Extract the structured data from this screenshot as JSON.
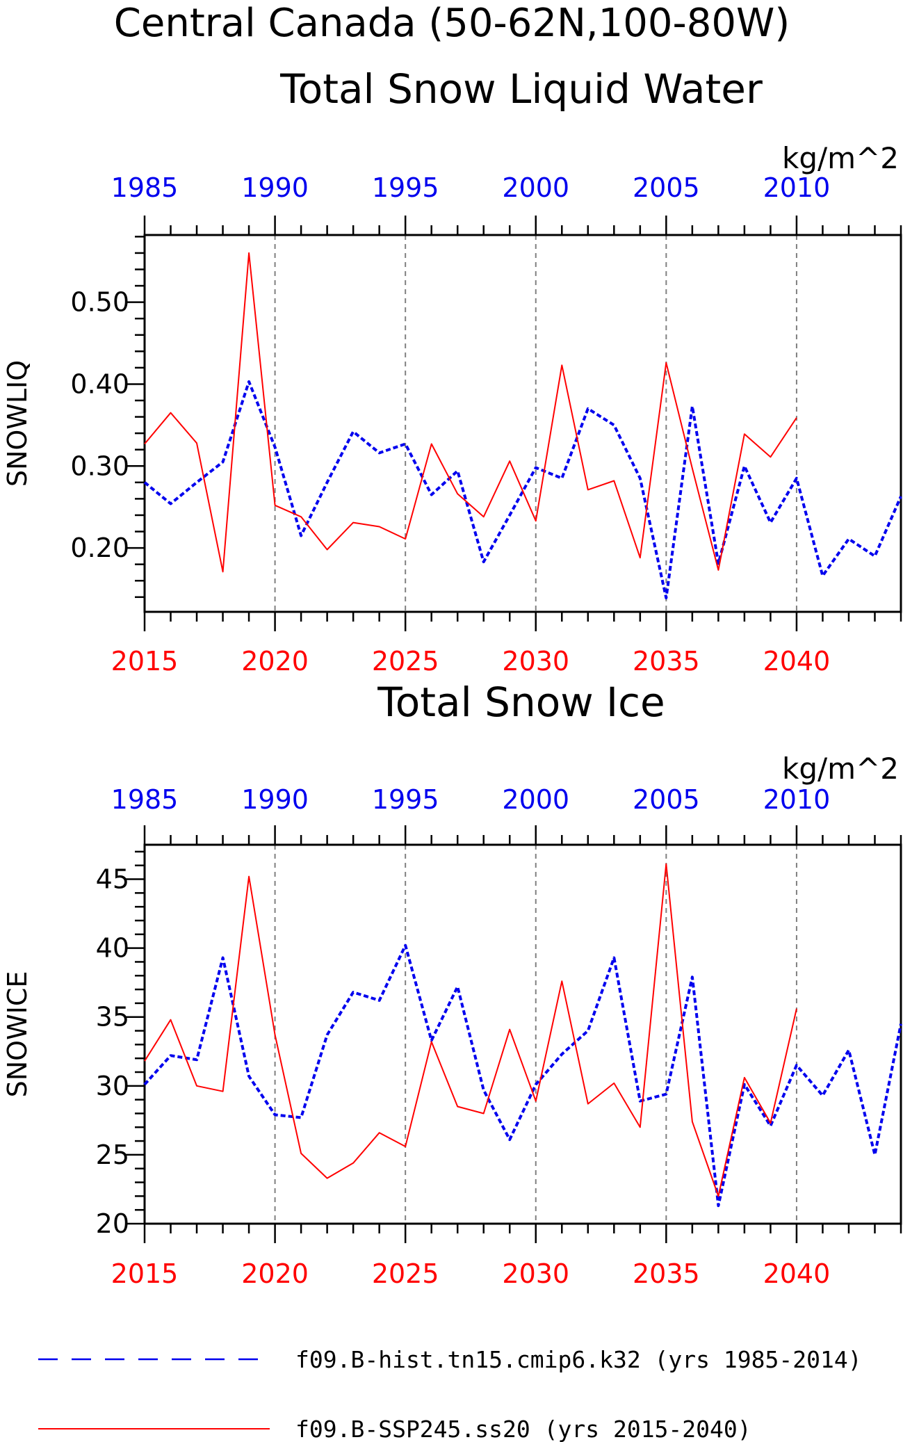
{
  "main_title_line1": "Central Canada (50-62N,100-80W)",
  "colors": {
    "hist": "#0000ee",
    "ssp": "#ff0000",
    "axis": "#000000",
    "grid": "#808080"
  },
  "legend": [
    {
      "label": "f09.B-hist.tn15.cmip6.k32 (yrs 1985-2014)",
      "color": "#0000ee",
      "style": "dashed"
    },
    {
      "label": "f09.B-SSP245.ss20 (yrs 2015-2040)",
      "color": "#ff0000",
      "style": "solid"
    }
  ],
  "chart_data": [
    {
      "type": "line",
      "title": "Total Snow Liquid Water",
      "ylabel": "SNOWLIQ",
      "units": "kg/m^2",
      "ylim": [
        0.122,
        0.582
      ],
      "yticks": [
        "0.20",
        "0.30",
        "0.40",
        "0.50"
      ],
      "ytick_values": [
        0.2,
        0.3,
        0.4,
        0.5
      ],
      "yminor_step": 0.02,
      "xlim_bottom": [
        2015,
        2044
      ],
      "xticks_bottom": [
        2015,
        2020,
        2025,
        2030,
        2035,
        2040
      ],
      "xlim_top": [
        1985,
        2014
      ],
      "xticks_top": [
        1985,
        1990,
        1995,
        2000,
        2005,
        2010
      ],
      "grid": "vertical dashed at major bottom ticks",
      "series": [
        {
          "name": "f09.B-hist.tn15.cmip6.k32 (yrs 1985-2014)",
          "axis": "top",
          "style": "dashed",
          "x": [
            1985,
            1986,
            1987,
            1988,
            1989,
            1990,
            1991,
            1992,
            1993,
            1994,
            1995,
            1996,
            1997,
            1998,
            1999,
            2000,
            2001,
            2002,
            2003,
            2004,
            2005,
            2006,
            2007,
            2008,
            2009,
            2010,
            2011,
            2012,
            2013,
            2014
          ],
          "values": [
            0.28,
            0.254,
            0.28,
            0.305,
            0.403,
            0.323,
            0.215,
            0.28,
            0.342,
            0.316,
            0.327,
            0.265,
            0.294,
            0.183,
            0.24,
            0.298,
            0.285,
            0.37,
            0.35,
            0.285,
            0.139,
            0.373,
            0.181,
            0.3,
            0.231,
            0.285,
            0.166,
            0.211,
            0.19,
            0.263
          ]
        },
        {
          "name": "f09.B-SSP245.ss20 (yrs 2015-2040)",
          "axis": "bottom",
          "style": "solid",
          "x": [
            2015,
            2016,
            2017,
            2018,
            2019,
            2020,
            2021,
            2022,
            2023,
            2024,
            2025,
            2026,
            2027,
            2028,
            2029,
            2030,
            2031,
            2032,
            2033,
            2034,
            2035,
            2036,
            2037,
            2038,
            2039,
            2040
          ],
          "values": [
            0.327,
            0.365,
            0.328,
            0.171,
            0.56,
            0.252,
            0.238,
            0.198,
            0.231,
            0.226,
            0.211,
            0.327,
            0.266,
            0.238,
            0.306,
            0.233,
            0.423,
            0.271,
            0.282,
            0.188,
            0.426,
            0.297,
            0.173,
            0.339,
            0.311,
            0.359
          ]
        }
      ]
    },
    {
      "type": "line",
      "title": "Total Snow Ice",
      "ylabel": "SNOWICE",
      "units": "kg/m^2",
      "ylim": [
        20,
        47.5
      ],
      "yticks": [
        "20",
        "25",
        "30",
        "35",
        "40",
        "45"
      ],
      "ytick_values": [
        20,
        25,
        30,
        35,
        40,
        45
      ],
      "yminor_step": 1,
      "xlim_bottom": [
        2015,
        2044
      ],
      "xticks_bottom": [
        2015,
        2020,
        2025,
        2030,
        2035,
        2040
      ],
      "xlim_top": [
        1985,
        2014
      ],
      "xticks_top": [
        1985,
        1990,
        1995,
        2000,
        2005,
        2010
      ],
      "grid": "vertical dashed at major bottom ticks",
      "series": [
        {
          "name": "f09.B-hist.tn15.cmip6.k32 (yrs 1985-2014)",
          "axis": "top",
          "style": "dashed",
          "x": [
            1985,
            1986,
            1987,
            1988,
            1989,
            1990,
            1991,
            1992,
            1993,
            1994,
            1995,
            1996,
            1997,
            1998,
            1999,
            2000,
            2001,
            2002,
            2003,
            2004,
            2005,
            2006,
            2007,
            2008,
            2009,
            2010,
            2011,
            2012,
            2013,
            2014
          ],
          "values": [
            30.1,
            32.2,
            31.9,
            39.3,
            30.7,
            27.9,
            27.7,
            33.7,
            36.8,
            36.2,
            40.2,
            33.3,
            37.2,
            29.7,
            26.1,
            30.1,
            32.3,
            34.0,
            39.3,
            28.9,
            29.4,
            37.9,
            21.3,
            30.1,
            27.1,
            31.5,
            29.3,
            32.6,
            25.0,
            34.5
          ]
        },
        {
          "name": "f09.B-SSP245.ss20 (yrs 2015-2040)",
          "axis": "bottom",
          "style": "solid",
          "x": [
            2015,
            2016,
            2017,
            2018,
            2019,
            2020,
            2021,
            2022,
            2023,
            2024,
            2025,
            2026,
            2027,
            2028,
            2029,
            2030,
            2031,
            2032,
            2033,
            2034,
            2035,
            2036,
            2037,
            2038,
            2039,
            2040
          ],
          "values": [
            31.8,
            34.8,
            30.0,
            29.6,
            45.2,
            33.7,
            25.1,
            23.3,
            24.4,
            26.6,
            25.6,
            33.2,
            28.5,
            28.0,
            34.1,
            28.9,
            37.6,
            28.7,
            30.2,
            27.0,
            46.1,
            27.4,
            22.0,
            30.6,
            27.3,
            35.6
          ]
        }
      ]
    }
  ]
}
